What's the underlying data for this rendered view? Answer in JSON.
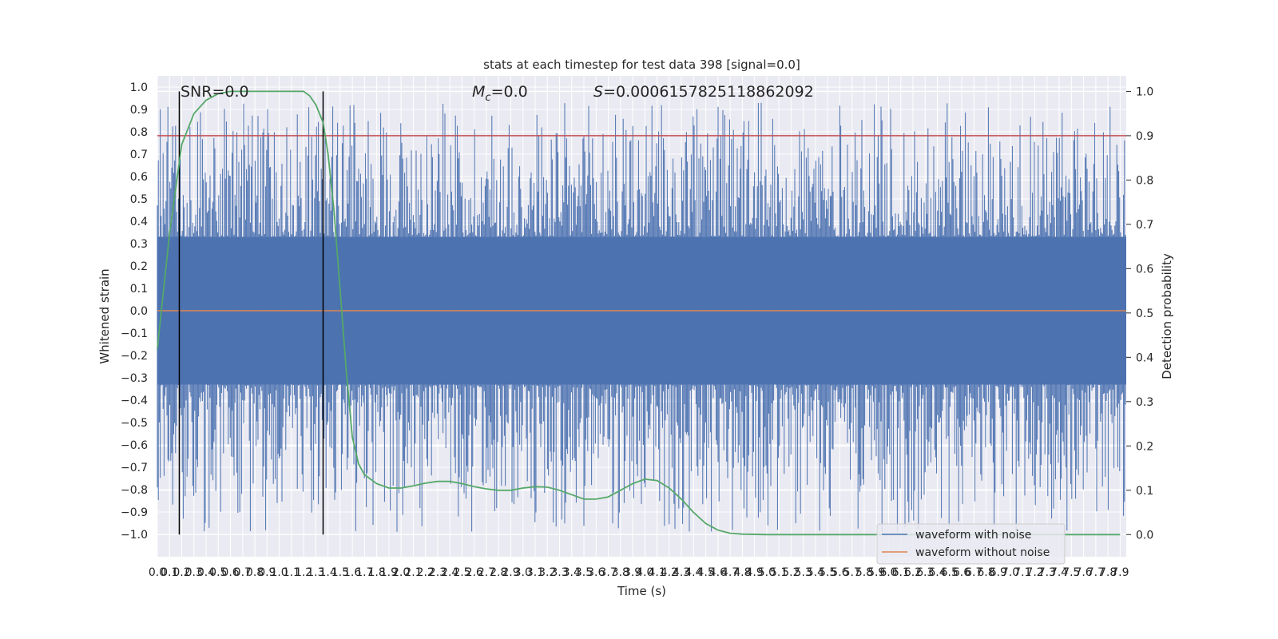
{
  "chart_data": {
    "type": "line",
    "title": "stats at each timestep for test data 398 [signal=0.0]",
    "xlabel": "Time (s)",
    "ylabel": "Whitened strain",
    "ylabel_right": "Detection probability",
    "xlim": [
      0,
      7.95
    ],
    "ylim": [
      -1.1,
      1.05
    ],
    "ylim_right": [
      -0.05,
      1.035
    ],
    "xticks": [
      "0.0",
      "0.1",
      "0.2",
      "0.3",
      "0.4",
      "0.5",
      "0.6",
      "0.7",
      "0.8",
      "0.9",
      "1.0",
      "1.1",
      "1.2",
      "1.3",
      "1.4",
      "1.5",
      "1.6",
      "1.7",
      "1.8",
      "1.9",
      "2.0",
      "2.1",
      "2.2",
      "2.3",
      "2.4",
      "2.5",
      "2.6",
      "2.7",
      "2.8",
      "2.9",
      "3.0",
      "3.1",
      "3.2",
      "3.3",
      "3.4",
      "3.5",
      "3.6",
      "3.7",
      "3.8",
      "3.9",
      "4.0",
      "4.1",
      "4.2",
      "4.3",
      "4.4",
      "4.5",
      "4.6",
      "4.7",
      "4.8",
      "4.9",
      "5.0",
      "5.1",
      "5.2",
      "5.3",
      "5.4",
      "5.5",
      "5.6",
      "5.7",
      "5.8",
      "5.9",
      "6.0",
      "6.1",
      "6.2",
      "6.3",
      "6.4",
      "6.5",
      "6.6",
      "6.7",
      "6.8",
      "6.9",
      "7.0",
      "7.1",
      "7.2",
      "7.3",
      "7.4",
      "7.5",
      "7.6",
      "7.7",
      "7.8",
      "7.9"
    ],
    "yticks_left": [
      "1.0",
      "0.9",
      "0.8",
      "0.7",
      "0.6",
      "0.5",
      "0.4",
      "0.3",
      "0.2",
      "0.1",
      "0.0",
      "−0.1",
      "−0.2",
      "−0.3",
      "−0.4",
      "−0.5",
      "−0.6",
      "−0.7",
      "−0.8",
      "−0.9",
      "−1.0"
    ],
    "yticks_right": [
      "1.0",
      "0.9",
      "0.8",
      "0.7",
      "0.6",
      "0.5",
      "0.4",
      "0.3",
      "0.2",
      "0.1",
      "0.0"
    ],
    "annotations": {
      "snr": "SNR=0.0",
      "mc_symbol": "M",
      "mc_sub": "c",
      "mc_value": "=0.0",
      "s_symbol": "S",
      "s_value": "=0.0006157825118862092"
    },
    "vertical_lines_x": [
      0.18,
      1.36
    ],
    "threshold_right": 0.9,
    "series": [
      {
        "name": "waveform with noise",
        "color": "#4c72b0",
        "axis": "left",
        "noise_envelope": 0.33,
        "peak_max": 0.93,
        "trough_min": -0.99
      },
      {
        "name": "waveform without noise",
        "color": "#dd8452",
        "axis": "left",
        "values_constant": 0.0
      },
      {
        "name": "detection probability",
        "color": "#55a868",
        "axis": "right",
        "x": [
          0.0,
          0.1,
          0.2,
          0.3,
          0.4,
          0.5,
          0.6,
          0.8,
          1.0,
          1.2,
          1.25,
          1.3,
          1.36,
          1.4,
          1.45,
          1.5,
          1.55,
          1.6,
          1.65,
          1.7,
          1.8,
          1.9,
          2.0,
          2.1,
          2.2,
          2.3,
          2.4,
          2.5,
          2.6,
          2.7,
          2.8,
          2.9,
          3.0,
          3.1,
          3.2,
          3.3,
          3.4,
          3.5,
          3.6,
          3.7,
          3.8,
          3.9,
          4.0,
          4.1,
          4.2,
          4.3,
          4.4,
          4.5,
          4.6,
          4.7,
          4.8,
          5.0,
          6.0,
          7.0,
          7.9
        ],
        "values": [
          0.42,
          0.68,
          0.88,
          0.95,
          0.98,
          0.995,
          1.0,
          1.0,
          1.0,
          1.0,
          0.99,
          0.97,
          0.93,
          0.86,
          0.73,
          0.55,
          0.37,
          0.22,
          0.16,
          0.135,
          0.115,
          0.105,
          0.105,
          0.11,
          0.116,
          0.12,
          0.12,
          0.115,
          0.108,
          0.103,
          0.1,
          0.1,
          0.105,
          0.108,
          0.107,
          0.1,
          0.09,
          0.08,
          0.08,
          0.085,
          0.1,
          0.115,
          0.125,
          0.122,
          0.105,
          0.08,
          0.05,
          0.025,
          0.01,
          0.003,
          0.001,
          0.0,
          0.0,
          0.0,
          0.0
        ]
      }
    ],
    "legend": [
      "waveform with noise",
      "waveform without noise"
    ],
    "legend_position": "lower-right",
    "grid": true,
    "colors": {
      "background": "#eaeaf2",
      "grid": "#ffffff",
      "threshold": "#c44e52",
      "vline": "#000000"
    }
  }
}
